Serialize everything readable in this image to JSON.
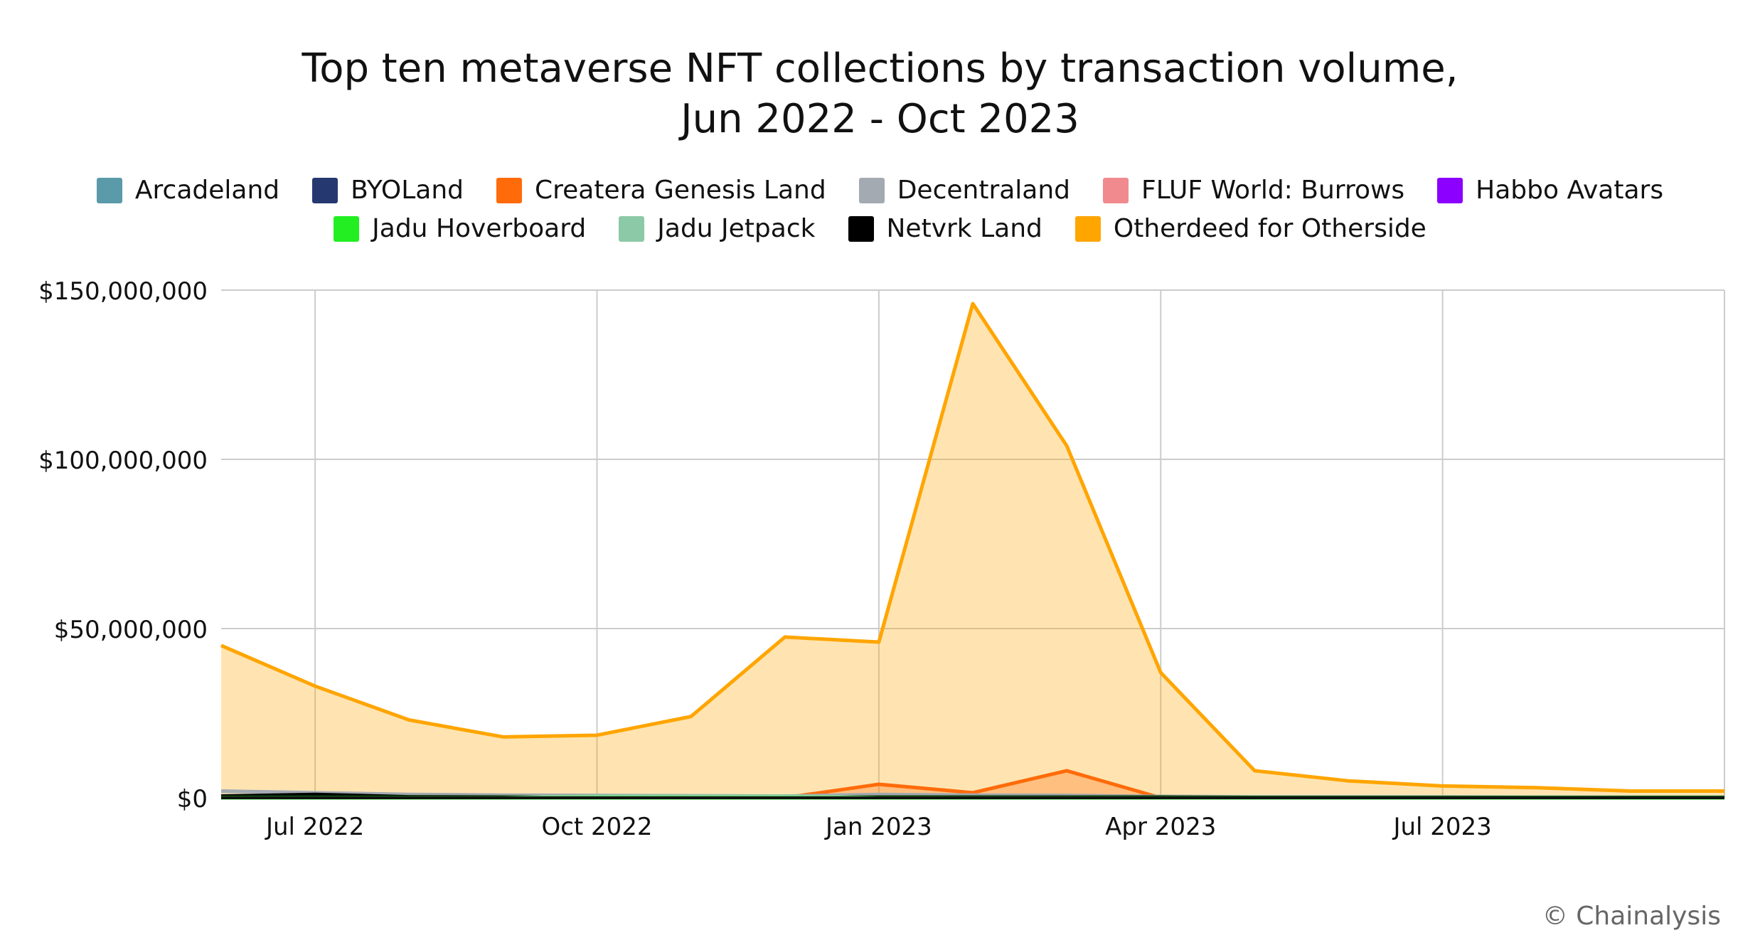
{
  "title_line1": "Top ten metaverse NFT collections by transaction volume,",
  "title_line2": "Jun 2022 - Oct 2023",
  "credit": "© Chainalysis",
  "chart_data": {
    "type": "area",
    "title": "Top ten metaverse NFT collections by transaction volume, Jun 2022 - Oct 2023",
    "x": [
      "2022-06",
      "2022-07",
      "2022-08",
      "2022-09",
      "2022-10",
      "2022-11",
      "2022-12",
      "2023-01",
      "2023-02",
      "2023-03",
      "2023-04",
      "2023-05",
      "2023-06",
      "2023-07",
      "2023-08",
      "2023-09",
      "2023-10"
    ],
    "x_ticks": [
      {
        "date": "2022-07",
        "label": "Jul 2022"
      },
      {
        "date": "2022-10",
        "label": "Oct 2022"
      },
      {
        "date": "2023-01",
        "label": "Jan 2023"
      },
      {
        "date": "2023-04",
        "label": "Apr 2023"
      },
      {
        "date": "2023-07",
        "label": "Jul 2023"
      }
    ],
    "y_ticks": [
      {
        "value": 0,
        "label": "$0"
      },
      {
        "value": 50000000,
        "label": "$50,000,000"
      },
      {
        "value": 100000000,
        "label": "$100,000,000"
      },
      {
        "value": 150000000,
        "label": "$150,000,000"
      }
    ],
    "ylim": [
      0,
      150000000
    ],
    "grid": true,
    "legend_position": "top",
    "series": [
      {
        "name": "Arcadeland",
        "color": "#5b9aa9",
        "values": [
          0,
          0,
          0,
          0,
          0,
          0,
          0,
          0,
          0,
          0,
          0,
          0,
          0,
          0,
          0,
          0,
          0
        ]
      },
      {
        "name": "BYOLand",
        "color": "#253970",
        "values": [
          0,
          0,
          0,
          0,
          0,
          0,
          0,
          0,
          0,
          0,
          0,
          0,
          0,
          0,
          0,
          0,
          0
        ]
      },
      {
        "name": "Createra Genesis Land",
        "color": "#ff6b0a",
        "values": [
          0,
          0,
          0,
          0,
          0,
          0,
          0,
          4000000,
          1500000,
          8000000,
          0,
          0,
          0,
          0,
          0,
          0,
          0
        ]
      },
      {
        "name": "Decentraland",
        "color": "#a3aab1",
        "values": [
          2000000,
          1500000,
          1000000,
          800000,
          700000,
          600000,
          500000,
          1000000,
          800000,
          700000,
          400000,
          300000,
          300000,
          300000,
          200000,
          200000,
          200000
        ]
      },
      {
        "name": "FLUF World: Burrows",
        "color": "#f08a8f",
        "values": [
          0,
          0,
          0,
          0,
          0,
          0,
          0,
          0,
          0,
          0,
          0,
          0,
          0,
          0,
          0,
          0,
          0
        ]
      },
      {
        "name": "Habbo Avatars",
        "color": "#8b00ff",
        "values": [
          0,
          0,
          0,
          0,
          0,
          0,
          0,
          0,
          0,
          0,
          0,
          0,
          0,
          0,
          0,
          0,
          0
        ]
      },
      {
        "name": "Jadu Hoverboard",
        "color": "#22ee22",
        "values": [
          0,
          0,
          0,
          0,
          0,
          0,
          0,
          0,
          0,
          0,
          0,
          0,
          0,
          0,
          0,
          0,
          0
        ]
      },
      {
        "name": "Jadu Jetpack",
        "color": "#8cc9a6",
        "values": [
          0,
          0,
          0,
          0,
          500000,
          500000,
          500000,
          0,
          0,
          0,
          0,
          0,
          0,
          0,
          0,
          0,
          0
        ]
      },
      {
        "name": "Netvrk Land",
        "color": "#000000",
        "values": [
          500000,
          1000000,
          300000,
          200000,
          200000,
          200000,
          200000,
          200000,
          200000,
          200000,
          200000,
          100000,
          100000,
          100000,
          100000,
          100000,
          100000
        ]
      },
      {
        "name": "Otherdeed for Otherside",
        "color": "#ffa500",
        "values": [
          45000000,
          33000000,
          23000000,
          18000000,
          18500000,
          24000000,
          47500000,
          46000000,
          146000000,
          104000000,
          37000000,
          8000000,
          5000000,
          3500000,
          3000000,
          2000000,
          2000000
        ]
      }
    ]
  }
}
